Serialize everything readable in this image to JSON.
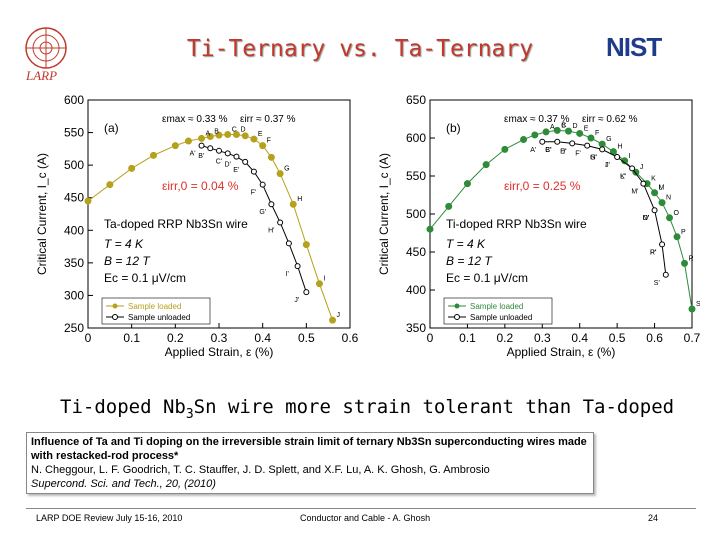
{
  "slide": {
    "title": "Ti-Ternary vs. Ta-Ternary",
    "larp_logo_text": "LARP",
    "nist_logo_text": "NIST",
    "headline_pre": "Ti-doped Nb",
    "headline_sub": "3",
    "headline_post": "Sn wire more strain tolerant than Ta-doped",
    "ref_title": "Influence of Ta and Ti doping on the irreversible strain limit of ternary Nb3Sn superconducting wires made with restacked-rod process*",
    "ref_authors": "N. Cheggour, L. F. Goodrich, T. C. Stauffer, J. D. Splett, and X.F. Lu, A. K. Ghosh, G. Ambrosio",
    "ref_journal": "Supercond. Sci. and Tech., 20, (2010)",
    "footer_left": "LARP DOE Review July 15-16, 2010",
    "footer_mid": "Conductor and Cable - A. Ghosh",
    "page_number": "24"
  },
  "colors": {
    "title": "#c0392b",
    "ta_series": "#b5a11b",
    "ti_series": "#2e8b3a",
    "unloaded": "#000000",
    "annotation": "#e0302b",
    "nist": "#1f3b8c"
  },
  "chart_data": [
    {
      "type": "line",
      "panel": "(a)",
      "xlabel": "Applied Strain, ε (%)",
      "ylabel": "Critical Current, I_c (A)",
      "xlim": [
        0,
        0.6
      ],
      "ylim": [
        250,
        600
      ],
      "xticks": [
        "0",
        "0.1",
        "0.2",
        "0.3",
        "0.4",
        "0.5",
        "0.6"
      ],
      "yticks": [
        "250",
        "300",
        "350",
        "400",
        "450",
        "500",
        "550",
        "600"
      ],
      "series": [
        {
          "name": "Sample loaded",
          "x": [
            0,
            0.05,
            0.1,
            0.15,
            0.2,
            0.23,
            0.26,
            0.28,
            0.3,
            0.32,
            0.34,
            0.36,
            0.38,
            0.4,
            0.42,
            0.44,
            0.47,
            0.5,
            0.53,
            0.56
          ],
          "y": [
            445,
            470,
            495,
            515,
            530,
            537,
            541,
            544,
            546,
            547,
            547,
            545,
            540,
            530,
            512,
            487,
            440,
            378,
            318,
            262
          ]
        },
        {
          "name": "Sample unloaded",
          "x": [
            0.26,
            0.28,
            0.3,
            0.32,
            0.34,
            0.36,
            0.38,
            0.4,
            0.42,
            0.44,
            0.46,
            0.48,
            0.5
          ],
          "y": [
            530,
            526,
            522,
            518,
            513,
            505,
            490,
            470,
            440,
            412,
            380,
            345,
            305
          ]
        }
      ],
      "annotations": {
        "emax": "εmax ≈ 0.33 %",
        "eirr": "εirr ≈ 0.37 %",
        "eirr0": "εirr,0 = 0.04 %",
        "wire": "Ta-doped RRP Nb3Sn wire",
        "temp": "T = 4 K",
        "field": "B = 12 T",
        "ec": "Ec = 0.1 μV/cm"
      },
      "point_labels": [
        "A",
        "B",
        "C",
        "D",
        "E",
        "F",
        "G",
        "H",
        "I",
        "J",
        "A'",
        "B'",
        "C'",
        "D'",
        "E'",
        "F'",
        "G'",
        "H'",
        "I'",
        "J'"
      ],
      "legend": [
        "Sample loaded",
        "Sample unloaded"
      ]
    },
    {
      "type": "line",
      "panel": "(b)",
      "xlabel": "Applied Strain, ε (%)",
      "ylabel": "Critical Current, I_c (A)",
      "xlim": [
        0,
        0.7
      ],
      "ylim": [
        350,
        650
      ],
      "xticks": [
        "0",
        "0.1",
        "0.2",
        "0.3",
        "0.4",
        "0.5",
        "0.6",
        "0.7"
      ],
      "yticks": [
        "350",
        "400",
        "450",
        "500",
        "550",
        "600",
        "650"
      ],
      "series": [
        {
          "name": "Sample loaded",
          "x": [
            0,
            0.05,
            0.1,
            0.15,
            0.2,
            0.25,
            0.28,
            0.31,
            0.34,
            0.37,
            0.4,
            0.43,
            0.46,
            0.49,
            0.52,
            0.55,
            0.58,
            0.6,
            0.62,
            0.64,
            0.66,
            0.68,
            0.7
          ],
          "y": [
            480,
            510,
            540,
            565,
            585,
            598,
            604,
            608,
            610,
            609,
            606,
            600,
            592,
            582,
            570,
            555,
            540,
            528,
            515,
            495,
            470,
            435,
            375
          ]
        },
        {
          "name": "Sample unloaded",
          "x": [
            0.3,
            0.34,
            0.38,
            0.42,
            0.46,
            0.5,
            0.54,
            0.57,
            0.6,
            0.62,
            0.63
          ],
          "y": [
            595,
            595,
            593,
            590,
            585,
            575,
            560,
            540,
            505,
            460,
            420
          ]
        }
      ],
      "annotations": {
        "emax": "εmax ≈ 0.37 %",
        "eirr": "εirr ≈ 0.62 %",
        "eirr0": "εirr,0 = 0.25 %",
        "wire": "Ti-doped RRP Nb3Sn wire",
        "temp": "T = 4 K",
        "field": "B = 12 T",
        "ec": "Ec = 0.1 μV/cm"
      },
      "point_labels": [
        "A",
        "B",
        "C",
        "D",
        "E",
        "F",
        "G",
        "H",
        "I",
        "J",
        "K",
        "L",
        "M",
        "N",
        "O",
        "P",
        "R",
        "S",
        "A'",
        "B'",
        "C'",
        "D'",
        "E'",
        "F'",
        "G'",
        "H'",
        "I'",
        "J'",
        "K'",
        "L'",
        "M'",
        "N'",
        "O'",
        "P'",
        "R'",
        "S'"
      ],
      "legend": [
        "Sample loaded",
        "Sample unloaded"
      ]
    }
  ]
}
